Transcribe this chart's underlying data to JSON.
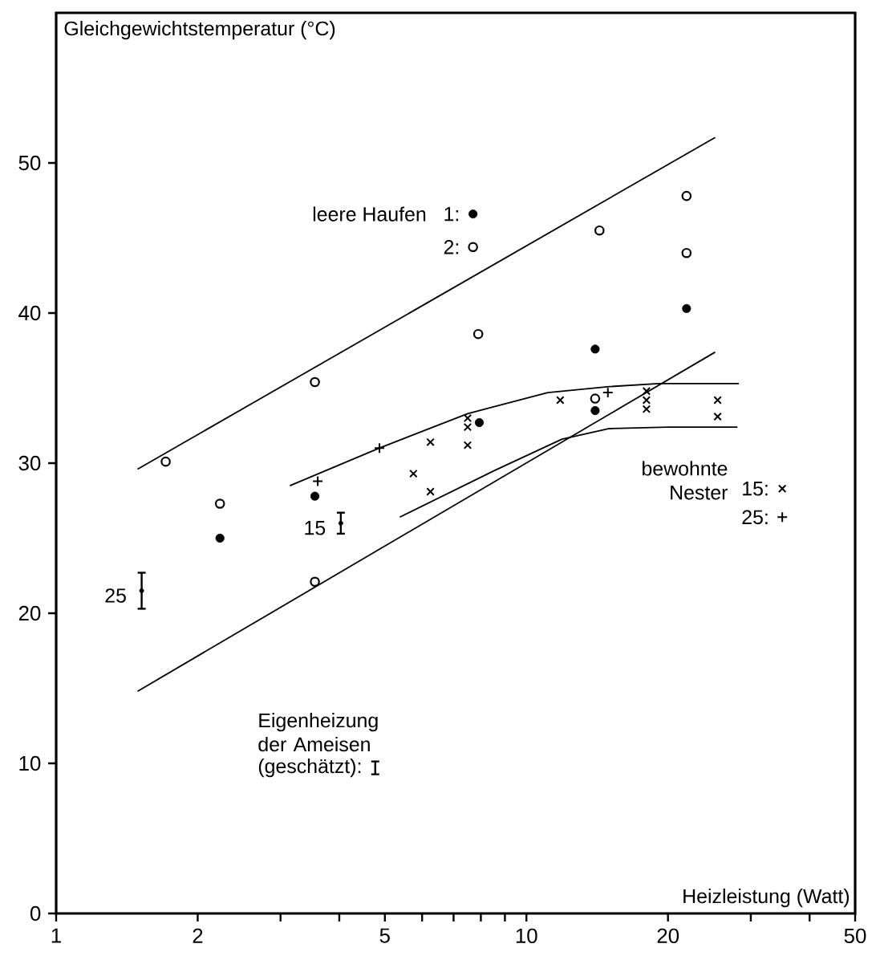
{
  "chart_data": {
    "type": "scatter",
    "xlabel": "Heizleistung (Watt)",
    "ylabel": "Gleichgewichtstemperatur (°C)",
    "log": "x",
    "legend": "center",
    "grid": false,
    "xlim": [
      1,
      50
    ],
    "ylim": [
      0,
      60
    ],
    "xticks": [
      1,
      2,
      {
        "value": 3,
        "label": null
      },
      {
        "value": 4,
        "label": null
      },
      5,
      {
        "value": 6,
        "label": null
      },
      {
        "value": 7,
        "label": null
      },
      {
        "value": 8,
        "label": null
      },
      {
        "value": 9,
        "label": null
      },
      10,
      20,
      {
        "value": 30,
        "label": null
      },
      {
        "value": 40,
        "label": null
      },
      50
    ],
    "yticks": [
      0,
      10,
      20,
      30,
      40,
      50
    ],
    "annotations": [
      "leere Haufen",
      "bewohnte Nester",
      "Eigenheizung der Ameisen",
      {
        "text": "25",
        "x": 1.52,
        "y": 21.5
      },
      {
        "text": "15",
        "x": 4.03,
        "y": 26.0
      }
    ],
    "series": [
      {
        "name": "1:",
        "marker": "circle",
        "color": "#000000",
        "x": [
          2.23,
          3.55,
          7.94,
          14.0,
          14.0,
          21.9
        ],
        "values": [
          25.0,
          27.8,
          32.7,
          33.5,
          37.6,
          40.3
        ]
      },
      {
        "name": "2:",
        "marker": "circle",
        "color": "#000000",
        "x": [
          1.71,
          2.23,
          3.55,
          3.55,
          7.9,
          14.3,
          14.0,
          21.9,
          21.9
        ],
        "values": [
          30.1,
          27.3,
          22.1,
          35.4,
          38.6,
          45.5,
          34.3,
          47.8,
          44.0
        ]
      },
      {
        "name": "15:",
        "marker": "cross",
        "color": "#000000",
        "x": [
          5.75,
          6.25,
          6.25,
          7.5,
          7.5,
          7.5,
          11.8,
          18.0,
          18.0,
          18.0,
          25.5,
          25.5
        ],
        "values": [
          29.3,
          28.1,
          31.4,
          33.0,
          32.4,
          31.2,
          34.2,
          34.8,
          34.2,
          33.6,
          34.2,
          33.1
        ]
      },
      {
        "name": "25:",
        "marker": "plus",
        "color": "#000000",
        "x": [
          3.6,
          4.87,
          14.9
        ],
        "values": [
          28.8,
          31.0,
          34.7
        ]
      },
      {
        "name": "(geschätzt):",
        "marker": "circle",
        "color": "#000000",
        "x": [
          1.52,
          4.03
        ],
        "values": [
          21.5,
          26.0
        ],
        "errors": [
          [
            20.3,
            22.7
          ],
          [
            25.3,
            26.7
          ]
        ]
      },
      {
        "type": "line",
        "color": "#000000",
        "x": [
          1.49,
          25.2
        ],
        "values": [
          29.6,
          51.7
        ]
      },
      {
        "type": "line",
        "color": "#000000",
        "x": [
          1.49,
          25.2
        ],
        "values": [
          14.8,
          37.4
        ]
      },
      {
        "type": "line",
        "color": "#000000",
        "x": [
          3.14,
          4.86,
          7.5,
          11.1,
          15.0,
          19.1,
          28.3
        ],
        "values": [
          28.5,
          31.0,
          33.3,
          34.7,
          35.1,
          35.3,
          35.3
        ]
      },
      {
        "type": "line",
        "color": "#000000",
        "x": [
          5.38,
          8.54,
          11.9,
          15.0,
          20.0,
          28.1
        ],
        "values": [
          26.4,
          29.5,
          31.6,
          32.3,
          32.4,
          32.4
        ]
      }
    ]
  }
}
